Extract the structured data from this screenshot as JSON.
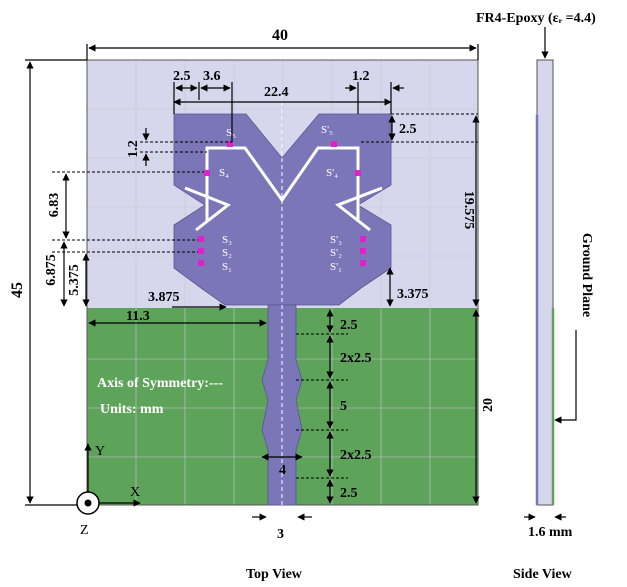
{
  "material": "FR4-Epoxy (εᵣ =4.4)",
  "annotations": {
    "axis_of_symmetry": "Axis of Symmetry:---",
    "units": "Units: mm",
    "ground_plane": "Ground Plane"
  },
  "axes": {
    "x": "X",
    "y": "Y",
    "z": "Z"
  },
  "views": {
    "top": "Top View",
    "side": "Side View"
  },
  "dimensions": {
    "width": "40",
    "height": "45",
    "d_2_5_top_left": "2.5",
    "d_3_6": "3.6",
    "d_22_4": "22.4",
    "d_1_2_top_right": "1.2",
    "d_2_5_right": "2.5",
    "d_1_2_left": "1.2",
    "d_6_83": "6.83",
    "d_19_575": "19.575",
    "d_6_875": "6.875",
    "d_5_375": "5.375",
    "d_3_875": "3.875",
    "d_3_375": "3.375",
    "d_11_3": "11.3",
    "feed_2_5_a": "2.5",
    "feed_2x2_5_a": "2x2.5",
    "feed_5": "5",
    "feed_2x2_5_b": "2x2.5",
    "feed_2_5_b": "2.5",
    "ground_20": "20",
    "feed_4": "4",
    "feed_3": "3",
    "thickness": "1.6 mm"
  },
  "slots": {
    "s1": "S₁",
    "s2": "S₂",
    "s3": "S₃",
    "s4": "S₄",
    "s5": "S₅",
    "s1p": "S'₁",
    "s2p": "S'₂",
    "s3p": "S'₃",
    "s4p": "S'₄",
    "s5p": "S'₅"
  },
  "colors": {
    "substrate": "#d6d6ec",
    "patch": "#7a76b8",
    "ground": "#5ea35a",
    "switch": "#e020c8"
  }
}
